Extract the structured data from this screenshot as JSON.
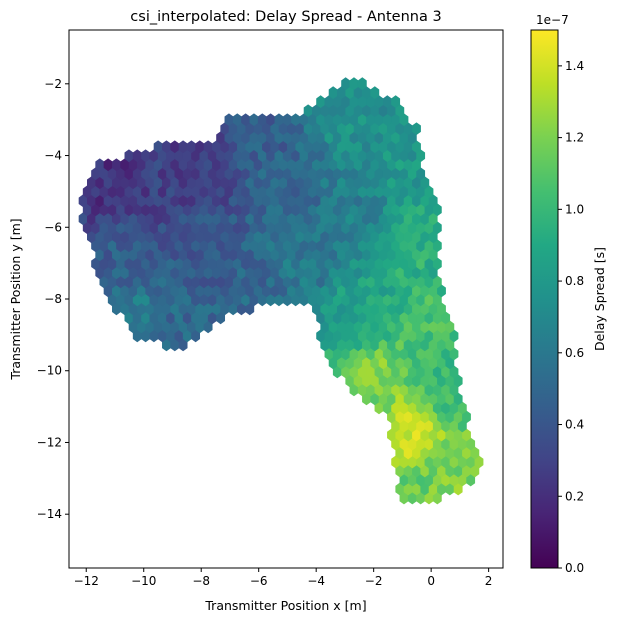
{
  "chart_data": {
    "type": "heatmap",
    "subtype": "hexbin",
    "title": "csi_interpolated: Delay Spread - Antenna 3",
    "xlabel": "Transmitter Position x [m]",
    "ylabel": "Transmitter Position y [m]",
    "xlim": [
      -12.6,
      2.5
    ],
    "ylim": [
      -15.5,
      -0.5
    ],
    "xticks": [
      -12,
      -10,
      -8,
      -6,
      -4,
      -2,
      0,
      2
    ],
    "xtick_labels": [
      "−12",
      "−10",
      "−8",
      "−6",
      "−4",
      "−2",
      "0",
      "2"
    ],
    "yticks": [
      -2,
      -4,
      -6,
      -8,
      -10,
      -12,
      -14
    ],
    "ytick_labels": [
      "−2",
      "−4",
      "−6",
      "−8",
      "−10",
      "−12",
      "−14"
    ],
    "grid": false,
    "colormap": "viridis",
    "colorbar": {
      "label": "Delay Spread [s]",
      "offset_text": "1e−7",
      "range": [
        0,
        1.5e-07
      ],
      "ticks": [
        0,
        0.2,
        0.4,
        0.6,
        0.8,
        1.0,
        1.2,
        1.4
      ],
      "tick_labels": [
        "0.0",
        "0.2",
        "0.4",
        "0.6",
        "0.8",
        "1.0",
        "1.2",
        "1.4"
      ]
    },
    "region_outline": [
      [
        -12.2,
        -5.0
      ],
      [
        -11.6,
        -4.2
      ],
      [
        -10.2,
        -3.9
      ],
      [
        -8.8,
        -3.6
      ],
      [
        -7.6,
        -3.6
      ],
      [
        -7.1,
        -3.0
      ],
      [
        -5.6,
        -2.9
      ],
      [
        -4.5,
        -2.9
      ],
      [
        -3.6,
        -2.2
      ],
      [
        -3.0,
        -1.9
      ],
      [
        -2.2,
        -2.0
      ],
      [
        -1.2,
        -2.5
      ],
      [
        -0.5,
        -3.2
      ],
      [
        -0.3,
        -4.2
      ],
      [
        0.2,
        -5.0
      ],
      [
        0.3,
        -6.0
      ],
      [
        0.3,
        -7.0
      ],
      [
        0.4,
        -8.0
      ],
      [
        0.8,
        -9.0
      ],
      [
        1.0,
        -10.3
      ],
      [
        1.3,
        -11.5
      ],
      [
        1.8,
        -12.5
      ],
      [
        1.5,
        -13.0
      ],
      [
        1.0,
        -13.4
      ],
      [
        0.0,
        -13.6
      ],
      [
        -1.0,
        -13.6
      ],
      [
        -1.3,
        -12.8
      ],
      [
        -1.5,
        -11.4
      ],
      [
        -2.8,
        -10.5
      ],
      [
        -3.5,
        -10.0
      ],
      [
        -4.0,
        -8.7
      ],
      [
        -4.1,
        -8.2
      ],
      [
        -6.0,
        -8.2
      ],
      [
        -7.0,
        -8.5
      ],
      [
        -8.0,
        -9.0
      ],
      [
        -8.9,
        -9.4
      ],
      [
        -10.3,
        -9.1
      ],
      [
        -11.0,
        -8.3
      ],
      [
        -11.6,
        -7.4
      ],
      [
        -11.8,
        -6.6
      ],
      [
        -12.1,
        -6.0
      ]
    ],
    "value_field_samples": [
      {
        "x": -11.0,
        "y": -4.8,
        "value": 2.2e-08
      },
      {
        "x": -9.5,
        "y": -4.3,
        "value": 2.8e-08
      },
      {
        "x": -8.0,
        "y": -4.5,
        "value": 2.6e-08
      },
      {
        "x": -8.0,
        "y": -6.5,
        "value": 4e-08
      },
      {
        "x": -10.8,
        "y": -7.0,
        "value": 4.5e-08
      },
      {
        "x": -10.5,
        "y": -8.6,
        "value": 6.5e-08
      },
      {
        "x": -8.5,
        "y": -8.8,
        "value": 5e-08
      },
      {
        "x": -6.0,
        "y": -3.5,
        "value": 4.5e-08
      },
      {
        "x": -5.0,
        "y": -5.0,
        "value": 5e-08
      },
      {
        "x": -6.0,
        "y": -7.8,
        "value": 5e-08
      },
      {
        "x": -4.5,
        "y": -7.0,
        "value": 6e-08
      },
      {
        "x": -3.0,
        "y": -2.5,
        "value": 7.5e-08
      },
      {
        "x": -2.5,
        "y": -5.5,
        "value": 6.5e-08
      },
      {
        "x": -1.0,
        "y": -4.5,
        "value": 8e-08
      },
      {
        "x": -0.5,
        "y": -6.5,
        "value": 9.5e-08
      },
      {
        "x": -2.5,
        "y": -8.5,
        "value": 8.5e-08
      },
      {
        "x": 0.0,
        "y": -9.0,
        "value": 1.05e-07
      },
      {
        "x": -2.0,
        "y": -10.2,
        "value": 1.2e-07
      },
      {
        "x": 0.5,
        "y": -10.5,
        "value": 1e-07
      },
      {
        "x": -0.5,
        "y": -11.8,
        "value": 1.4e-07
      },
      {
        "x": 0.5,
        "y": -12.7,
        "value": 1.2e-07
      },
      {
        "x": -0.5,
        "y": -13.2,
        "value": 1.15e-07
      }
    ]
  }
}
